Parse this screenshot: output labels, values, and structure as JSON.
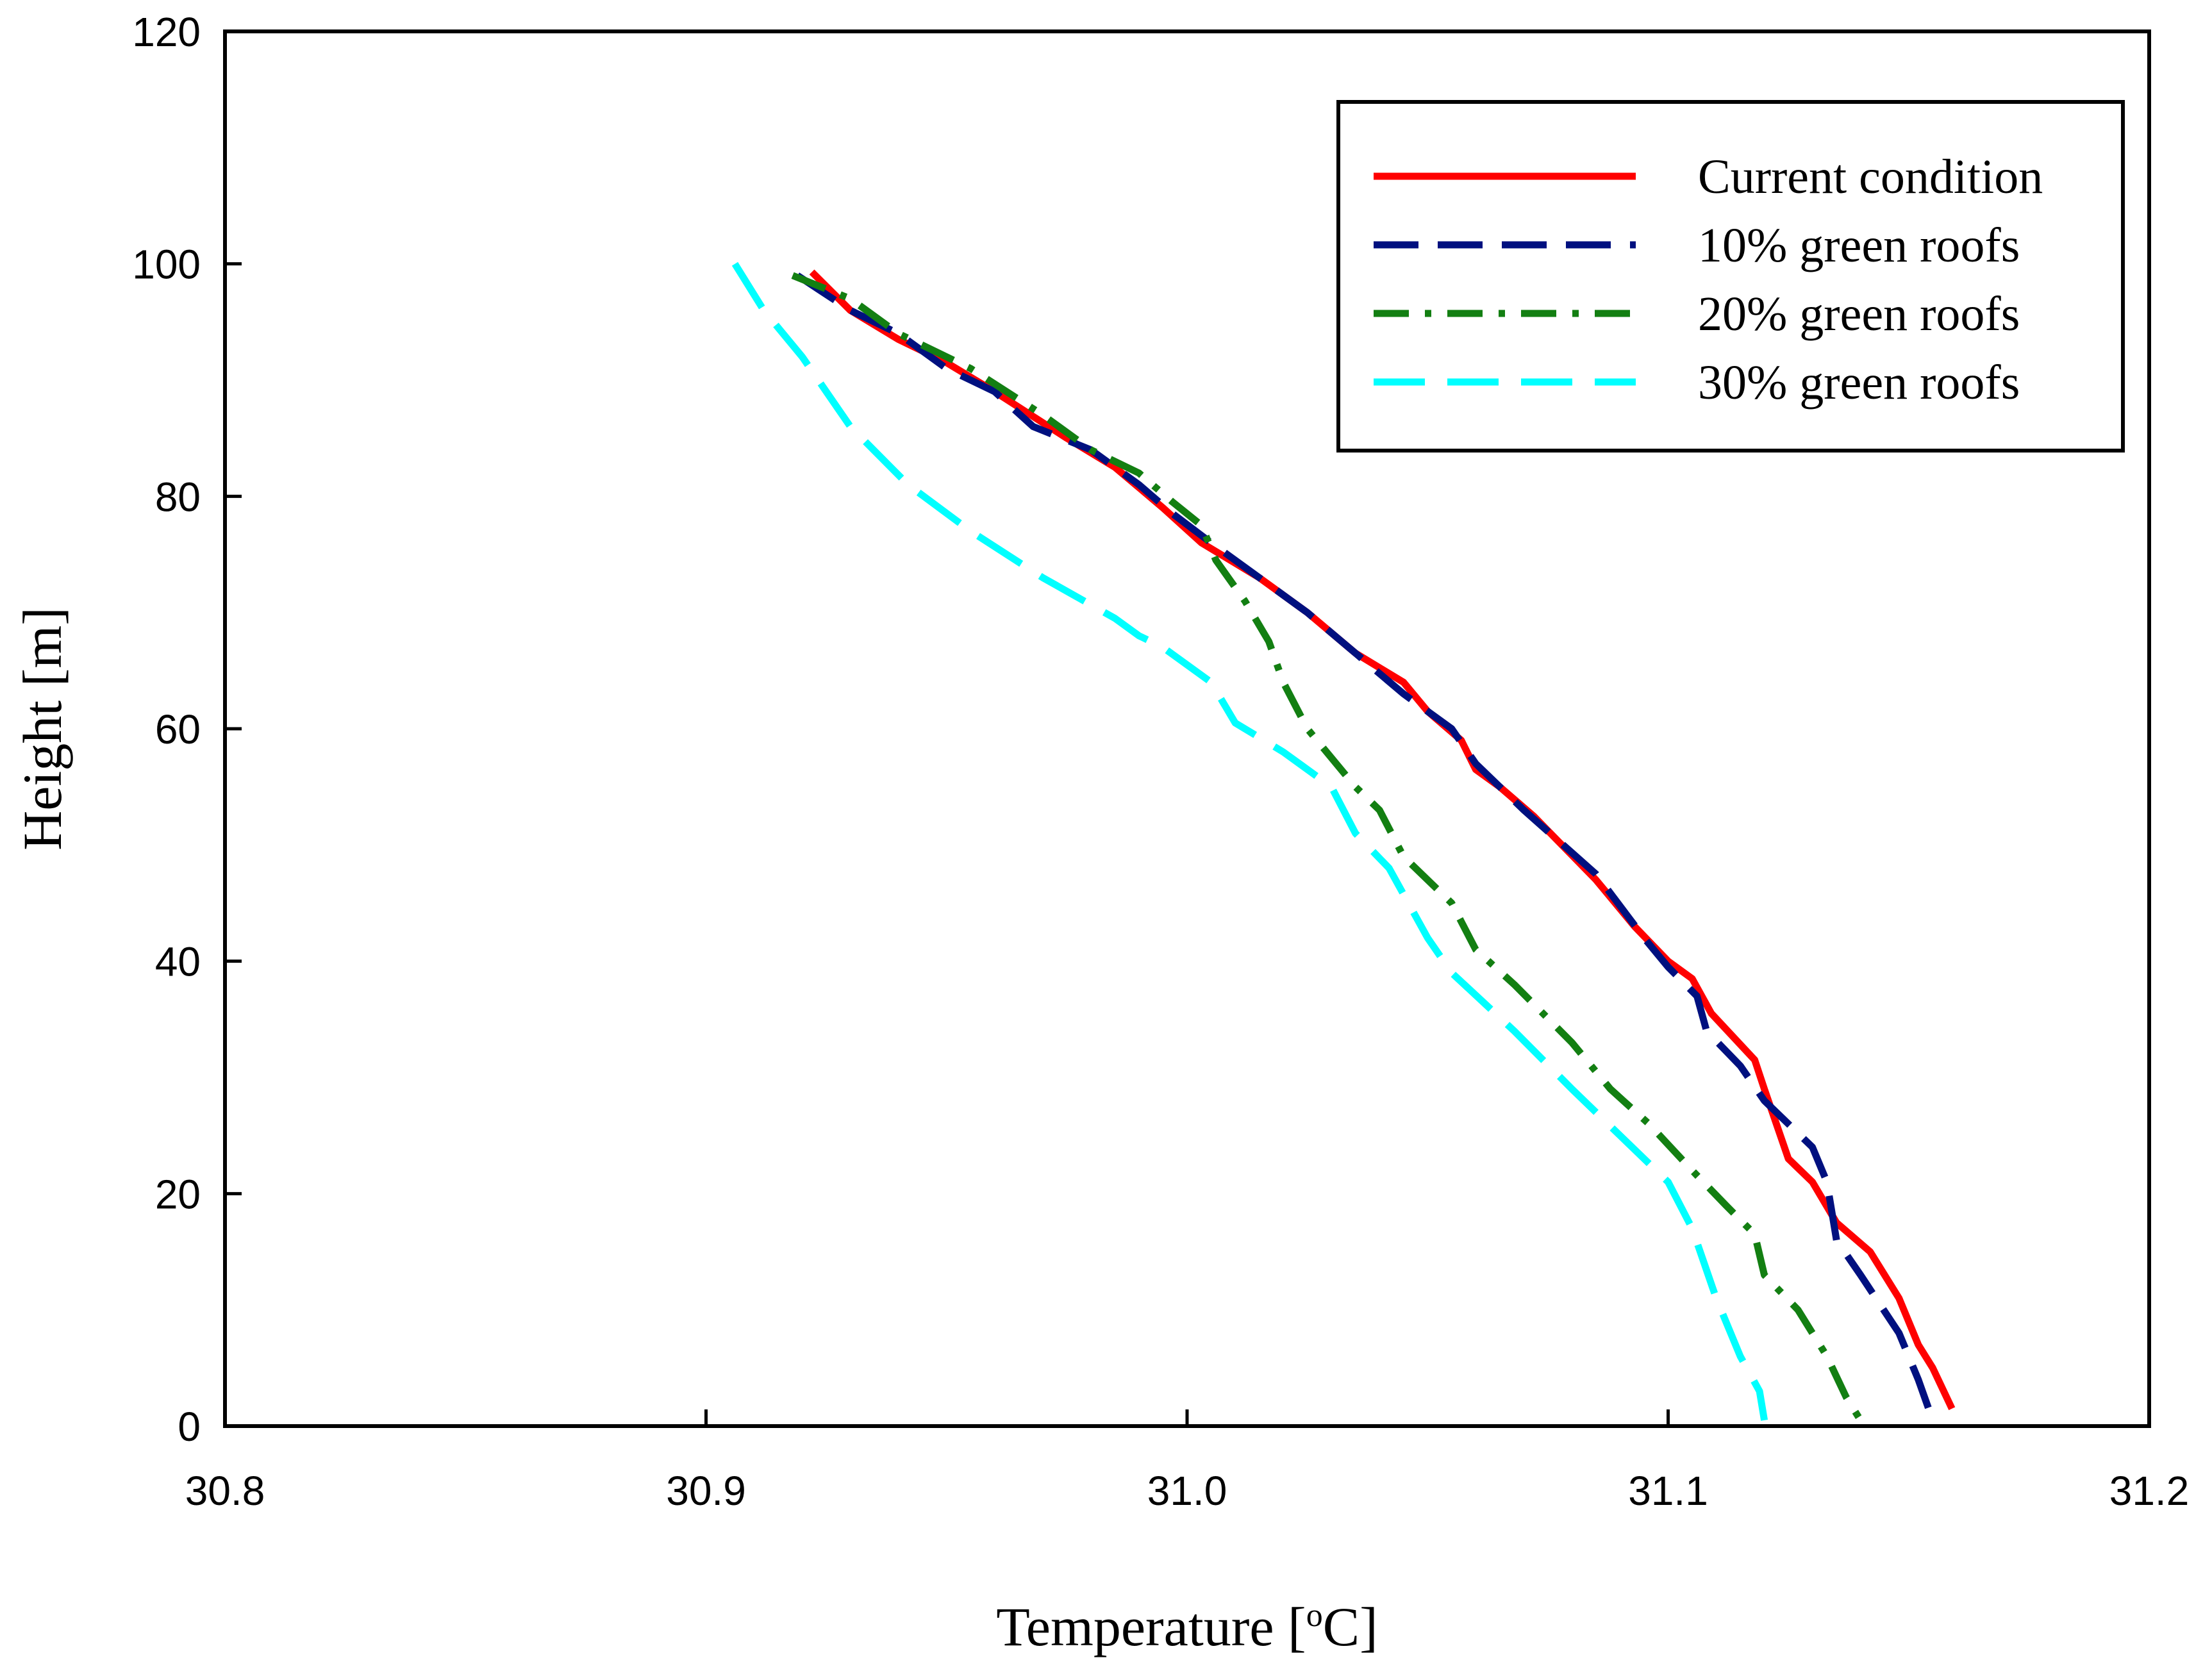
{
  "chart_data": {
    "type": "line",
    "title": "",
    "xlabel_main": "Temperature [",
    "xlabel_sup": "o",
    "xlabel_end": "C]",
    "ylabel": "Height [m]",
    "xlim": [
      30.8,
      31.2
    ],
    "ylim": [
      0,
      120
    ],
    "x_ticks": [
      "30.8",
      "30.9",
      "31.0",
      "31.1",
      "31.2"
    ],
    "x_tick_values": [
      30.8,
      30.9,
      31.0,
      31.1,
      31.2
    ],
    "y_ticks": [
      "0",
      "20",
      "40",
      "60",
      "80",
      "100",
      "120"
    ],
    "y_tick_values": [
      0,
      20,
      40,
      60,
      80,
      100,
      120
    ],
    "grid": false,
    "legend_position": "top-right",
    "series": [
      {
        "name": "Current condition",
        "color": "#ff0000",
        "dash": "solid",
        "points": [
          [
            30.922,
            99.3
          ],
          [
            30.93,
            96
          ],
          [
            30.94,
            93.5
          ],
          [
            30.95,
            91.5
          ],
          [
            30.96,
            89
          ],
          [
            30.975,
            85
          ],
          [
            30.985,
            82.5
          ],
          [
            30.995,
            79
          ],
          [
            31.003,
            76
          ],
          [
            31.015,
            73
          ],
          [
            31.025,
            70
          ],
          [
            31.035,
            66.5
          ],
          [
            31.045,
            64
          ],
          [
            31.05,
            61.5
          ],
          [
            31.057,
            59
          ],
          [
            31.06,
            56.5
          ],
          [
            31.065,
            55
          ],
          [
            31.072,
            52.5
          ],
          [
            31.085,
            47
          ],
          [
            31.093,
            43
          ],
          [
            31.1,
            40
          ],
          [
            31.105,
            38.5
          ],
          [
            31.109,
            35.5
          ],
          [
            31.118,
            31.5
          ],
          [
            31.12,
            29
          ],
          [
            31.125,
            23
          ],
          [
            31.13,
            21
          ],
          [
            31.135,
            17.5
          ],
          [
            31.142,
            15
          ],
          [
            31.148,
            11
          ],
          [
            31.152,
            7
          ],
          [
            31.155,
            5
          ],
          [
            31.159,
            1.5
          ]
        ]
      },
      {
        "name": "10% green roofs",
        "color": "#00107f",
        "dash": "dashed",
        "points": [
          [
            30.919,
            99
          ],
          [
            30.93,
            96
          ],
          [
            30.94,
            94
          ],
          [
            30.95,
            91
          ],
          [
            30.96,
            89
          ],
          [
            30.968,
            86
          ],
          [
            30.98,
            84
          ],
          [
            30.99,
            81
          ],
          [
            30.997,
            78.5
          ],
          [
            31.005,
            76
          ],
          [
            31.015,
            73
          ],
          [
            31.025,
            70
          ],
          [
            31.035,
            66.5
          ],
          [
            31.045,
            63
          ],
          [
            31.055,
            60
          ],
          [
            31.06,
            57
          ],
          [
            31.07,
            53
          ],
          [
            31.085,
            47.5
          ],
          [
            31.095,
            42
          ],
          [
            31.1,
            39.5
          ],
          [
            31.106,
            37
          ],
          [
            31.108,
            34
          ],
          [
            31.115,
            31
          ],
          [
            31.12,
            28
          ],
          [
            31.13,
            24
          ],
          [
            31.133,
            21
          ],
          [
            31.135,
            16
          ],
          [
            31.14,
            13
          ],
          [
            31.148,
            8
          ],
          [
            31.152,
            4
          ],
          [
            31.155,
            0.5
          ]
        ]
      },
      {
        "name": "20% green roofs",
        "color": "#137f12",
        "dash": "dashdot",
        "points": [
          [
            30.918,
            99
          ],
          [
            30.93,
            97
          ],
          [
            30.94,
            94
          ],
          [
            30.955,
            91
          ],
          [
            30.97,
            87
          ],
          [
            30.98,
            84
          ],
          [
            30.99,
            82
          ],
          [
            30.997,
            79.5
          ],
          [
            31.003,
            77.5
          ],
          [
            31.006,
            74.5
          ],
          [
            31.012,
            71
          ],
          [
            31.017,
            67.5
          ],
          [
            31.02,
            64
          ],
          [
            31.025,
            60
          ],
          [
            31.035,
            55
          ],
          [
            31.04,
            53
          ],
          [
            31.045,
            49
          ],
          [
            31.055,
            45
          ],
          [
            31.06,
            41
          ],
          [
            31.068,
            38
          ],
          [
            31.08,
            33
          ],
          [
            31.088,
            29
          ],
          [
            31.096,
            26
          ],
          [
            31.105,
            22
          ],
          [
            31.112,
            19
          ],
          [
            31.118,
            16.5
          ],
          [
            31.12,
            13
          ],
          [
            31.127,
            10
          ],
          [
            31.133,
            6
          ],
          [
            31.137,
            2.5
          ],
          [
            31.14,
            0.5
          ]
        ]
      },
      {
        "name": "30% green roofs",
        "color": "#00ffff",
        "dash": "longdash",
        "points": [
          [
            30.906,
            100
          ],
          [
            30.912,
            96
          ],
          [
            30.92,
            92
          ],
          [
            30.93,
            86
          ],
          [
            30.942,
            81
          ],
          [
            30.955,
            77
          ],
          [
            30.97,
            73
          ],
          [
            30.985,
            69.5
          ],
          [
            30.99,
            68
          ],
          [
            30.995,
            67
          ],
          [
            31.005,
            64
          ],
          [
            31.01,
            60.5
          ],
          [
            31.02,
            58
          ],
          [
            31.03,
            55
          ],
          [
            31.035,
            51
          ],
          [
            31.042,
            48
          ],
          [
            31.05,
            42
          ],
          [
            31.055,
            39
          ],
          [
            31.068,
            34
          ],
          [
            31.08,
            29
          ],
          [
            31.09,
            25
          ],
          [
            31.1,
            21
          ],
          [
            31.105,
            17
          ],
          [
            31.11,
            11
          ],
          [
            31.115,
            6
          ],
          [
            31.119,
            3
          ],
          [
            31.12,
            0.5
          ]
        ]
      }
    ]
  }
}
